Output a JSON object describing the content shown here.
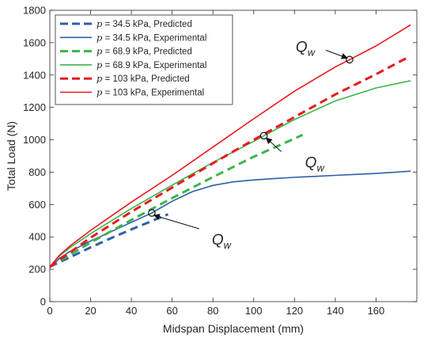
{
  "chart_data": {
    "type": "line",
    "xlabel": "Midspan Displacement (mm)",
    "ylabel": "Total Load (N)",
    "xlim": [
      0,
      180
    ],
    "ylim": [
      0,
      1800
    ],
    "xticks": [
      0,
      20,
      40,
      60,
      80,
      100,
      120,
      140,
      160
    ],
    "yticks": [
      0,
      200,
      400,
      600,
      800,
      1000,
      1200,
      1400,
      1600,
      1800
    ],
    "grid": false,
    "legend_position": "top-left",
    "series": [
      {
        "name_prefix": "p = 34.5 kPa, ",
        "name_suffix": "Predicted",
        "style": "dashed",
        "color": "#2E5FA8",
        "x": [
          0,
          10,
          20,
          30,
          40,
          50,
          58
        ],
        "y": [
          215,
          275,
          335,
          392,
          446,
          498,
          540
        ]
      },
      {
        "name_prefix": "p = 34.5 kPa, ",
        "name_suffix": "Experimental",
        "style": "solid",
        "color": "#2E5FA8",
        "x": [
          0,
          5,
          10,
          20,
          30,
          40,
          50,
          60,
          70,
          80,
          90,
          100,
          110,
          120,
          130,
          140,
          150,
          160,
          170,
          177
        ],
        "y": [
          210,
          270,
          310,
          375,
          432,
          490,
          548,
          620,
          680,
          718,
          740,
          752,
          760,
          768,
          774,
          780,
          786,
          792,
          800,
          806
        ]
      },
      {
        "name_prefix": "p = 68.9 kPa, ",
        "name_suffix": "Predicted",
        "style": "dashed",
        "color": "#3CB44B",
        "x": [
          0,
          20,
          40,
          60,
          80,
          100,
          124
        ],
        "y": [
          215,
          365,
          505,
          640,
          770,
          895,
          1030
        ]
      },
      {
        "name_prefix": "p = 68.9 kPa, ",
        "name_suffix": "Experimental",
        "style": "solid",
        "color": "#3CB44B",
        "x": [
          0,
          5,
          10,
          20,
          40,
          60,
          80,
          100,
          105,
          120,
          140,
          160,
          177
        ],
        "y": [
          215,
          285,
          335,
          420,
          575,
          720,
          860,
          990,
          1025,
          1125,
          1240,
          1320,
          1365
        ]
      },
      {
        "name_prefix": "p = 103 kPa, ",
        "name_suffix": "Predicted",
        "style": "dashed",
        "color": "#E8191C",
        "x": [
          0,
          20,
          40,
          60,
          80,
          100,
          120,
          140,
          160,
          175
        ],
        "y": [
          215,
          395,
          555,
          705,
          855,
          1000,
          1140,
          1280,
          1405,
          1505
        ]
      },
      {
        "name_prefix": "p = 103 kPa, ",
        "name_suffix": "Experimental",
        "style": "solid",
        "color": "#E8191C",
        "x": [
          0,
          5,
          10,
          20,
          40,
          60,
          80,
          100,
          120,
          140,
          147,
          160,
          177
        ],
        "y": [
          215,
          290,
          345,
          440,
          615,
          780,
          955,
          1130,
          1300,
          1450,
          1495,
          1580,
          1710
        ]
      }
    ],
    "annotations": [
      {
        "text": "Q",
        "subscript": "w",
        "point": [
          147,
          1495
        ]
      },
      {
        "text": "Q",
        "subscript": "w",
        "point": [
          105,
          1025
        ]
      },
      {
        "text": "Q",
        "subscript": "w",
        "point": [
          50,
          548
        ]
      }
    ]
  }
}
